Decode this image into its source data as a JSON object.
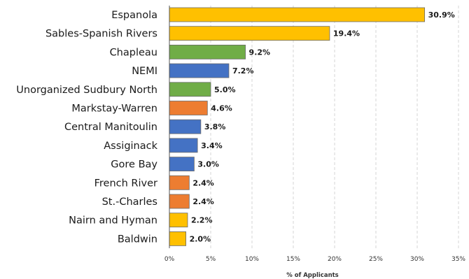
{
  "chart_data": {
    "type": "bar",
    "orientation": "horizontal",
    "title": "",
    "xlabel": "% of Applicants",
    "ylabel": "",
    "xlim": [
      0,
      35
    ],
    "x_ticks": [
      "0%",
      "5%",
      "10%",
      "15%",
      "20%",
      "25%",
      "30%",
      "35%"
    ],
    "grid": "vertical dashed",
    "legend": "none",
    "categories": [
      "Espanola",
      "Sables-Spanish Rivers",
      "Chapleau",
      "NEMI",
      "Unorganized Sudbury North",
      "Markstay-Warren",
      "Central Manitoulin",
      "Assiginack",
      "Gore Bay",
      "French River",
      "St.-Charles",
      "Nairn and Hyman",
      "Baldwin"
    ],
    "values": [
      30.9,
      19.4,
      9.2,
      7.2,
      5.0,
      4.6,
      3.8,
      3.4,
      3.0,
      2.4,
      2.4,
      2.2,
      2.0
    ],
    "value_labels": [
      "30.9%",
      "19.4%",
      "9.2%",
      "7.2%",
      "5.0%",
      "4.6%",
      "3.8%",
      "3.4%",
      "3.0%",
      "2.4%",
      "2.4%",
      "2.2%",
      "2.0%"
    ],
    "bar_colors": [
      "#FFC000",
      "#FFC000",
      "#70AD47",
      "#4472C4",
      "#70AD47",
      "#ED7D31",
      "#4472C4",
      "#4472C4",
      "#4472C4",
      "#ED7D31",
      "#ED7D31",
      "#FFC000",
      "#FFC000"
    ]
  }
}
